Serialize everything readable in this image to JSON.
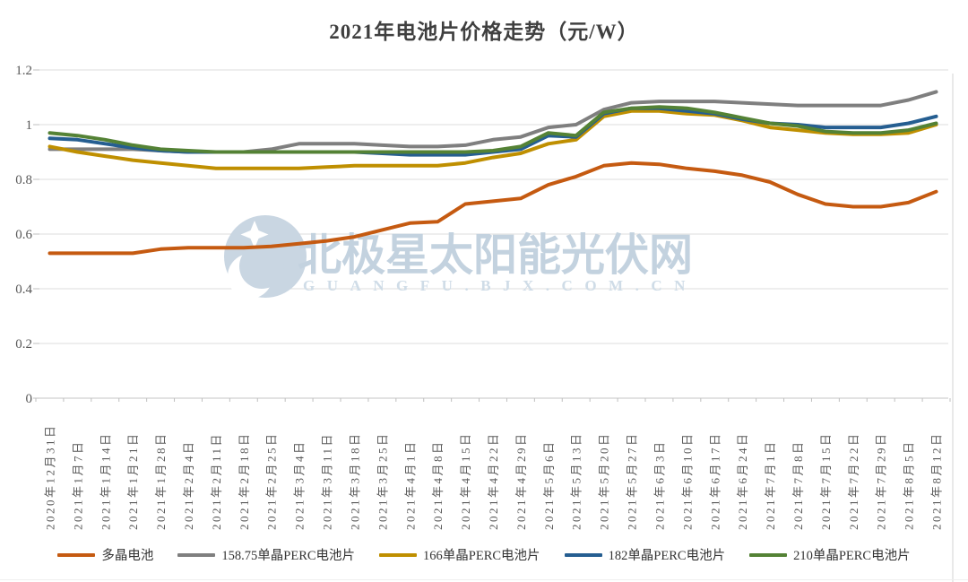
{
  "page": {
    "title": "2021年电池片价格走势（元/W）"
  },
  "watermark": {
    "text": "北极星太阳能光伏网",
    "subtext": "GUANGFU.BJX.COM.CN",
    "color": "#c3d2df",
    "subcolor": "#cfdce7",
    "logo_color": "#c9d6e2"
  },
  "axis": {
    "ytick_labels": [
      "0",
      "0.2",
      "0.4",
      "0.6",
      "0.8",
      "1",
      "1.2"
    ]
  },
  "colors": {
    "gridline": "#dcdcdc",
    "axis_line": "#c6c6c6",
    "tick": "#bfbfbf",
    "tick_label": "#595959",
    "title": "#3f3f3f"
  },
  "chart_data": {
    "type": "line",
    "title": "2021年电池片价格走势（元/W）",
    "xlabel": "",
    "ylabel": "",
    "ylim": [
      0,
      1.2
    ],
    "yticks": [
      0,
      0.2,
      0.4,
      0.6,
      0.8,
      1,
      1.2
    ],
    "grid": true,
    "legend_position": "bottom",
    "categories": [
      "2020年12月31日",
      "2021年1月7日",
      "2021年1月14日",
      "2021年1月21日",
      "2021年1月28日",
      "2021年2月4日",
      "2021年2月11日",
      "2021年2月18日",
      "2021年2月25日",
      "2021年3月4日",
      "2021年3月11日",
      "2021年3月18日",
      "2021年3月25日",
      "2021年4月1日",
      "2021年4月8日",
      "2021年4月15日",
      "2021年4月22日",
      "2021年4月29日",
      "2021年5月6日",
      "2021年5月13日",
      "2021年5月20日",
      "2021年5月27日",
      "2021年6月3日",
      "2021年6月10日",
      "2021年6月17日",
      "2021年6月24日",
      "2021年7月1日",
      "2021年7月8日",
      "2021年7月15日",
      "2021年7月22日",
      "2021年7月29日",
      "2021年8月5日",
      "2021年8月12日"
    ],
    "series": [
      {
        "name": "多晶电池",
        "color": "#c55a11",
        "values": [
          0.53,
          0.53,
          0.53,
          0.53,
          0.545,
          0.55,
          0.55,
          0.55,
          0.555,
          0.565,
          0.575,
          0.59,
          0.615,
          0.64,
          0.645,
          0.71,
          0.72,
          0.73,
          0.78,
          0.81,
          0.85,
          0.86,
          0.855,
          0.84,
          0.83,
          0.815,
          0.79,
          0.745,
          0.71,
          0.7,
          0.7,
          0.715,
          0.755
        ]
      },
      {
        "name": "158.75单晶PERC电池片",
        "color": "#7f7f7f",
        "values": [
          0.91,
          0.91,
          0.91,
          0.91,
          0.905,
          0.9,
          0.9,
          0.9,
          0.91,
          0.93,
          0.93,
          0.93,
          0.925,
          0.92,
          0.92,
          0.925,
          0.945,
          0.955,
          0.99,
          1.0,
          1.055,
          1.08,
          1.085,
          1.085,
          1.085,
          1.08,
          1.075,
          1.07,
          1.07,
          1.07,
          1.07,
          1.09,
          1.12
        ]
      },
      {
        "name": "166单晶PERC电池片",
        "color": "#bf8f00",
        "values": [
          0.92,
          0.9,
          0.885,
          0.87,
          0.86,
          0.85,
          0.84,
          0.84,
          0.84,
          0.84,
          0.845,
          0.85,
          0.85,
          0.85,
          0.85,
          0.86,
          0.88,
          0.895,
          0.93,
          0.945,
          1.03,
          1.05,
          1.05,
          1.04,
          1.035,
          1.015,
          0.99,
          0.98,
          0.97,
          0.965,
          0.965,
          0.97,
          1.0
        ]
      },
      {
        "name": "182单晶PERC电池片",
        "color": "#255e91",
        "values": [
          0.95,
          0.945,
          0.93,
          0.915,
          0.905,
          0.9,
          0.9,
          0.9,
          0.9,
          0.9,
          0.9,
          0.9,
          0.895,
          0.89,
          0.89,
          0.89,
          0.9,
          0.91,
          0.96,
          0.955,
          1.04,
          1.06,
          1.06,
          1.05,
          1.04,
          1.02,
          1.005,
          1.0,
          0.99,
          0.99,
          0.99,
          1.005,
          1.03
        ]
      },
      {
        "name": "210单晶PERC电池片",
        "color": "#548235",
        "values": [
          0.97,
          0.96,
          0.945,
          0.925,
          0.91,
          0.905,
          0.9,
          0.9,
          0.9,
          0.9,
          0.9,
          0.9,
          0.9,
          0.9,
          0.9,
          0.9,
          0.905,
          0.92,
          0.97,
          0.96,
          1.045,
          1.06,
          1.065,
          1.06,
          1.045,
          1.025,
          1.005,
          0.995,
          0.975,
          0.97,
          0.97,
          0.98,
          1.005
        ]
      }
    ]
  }
}
